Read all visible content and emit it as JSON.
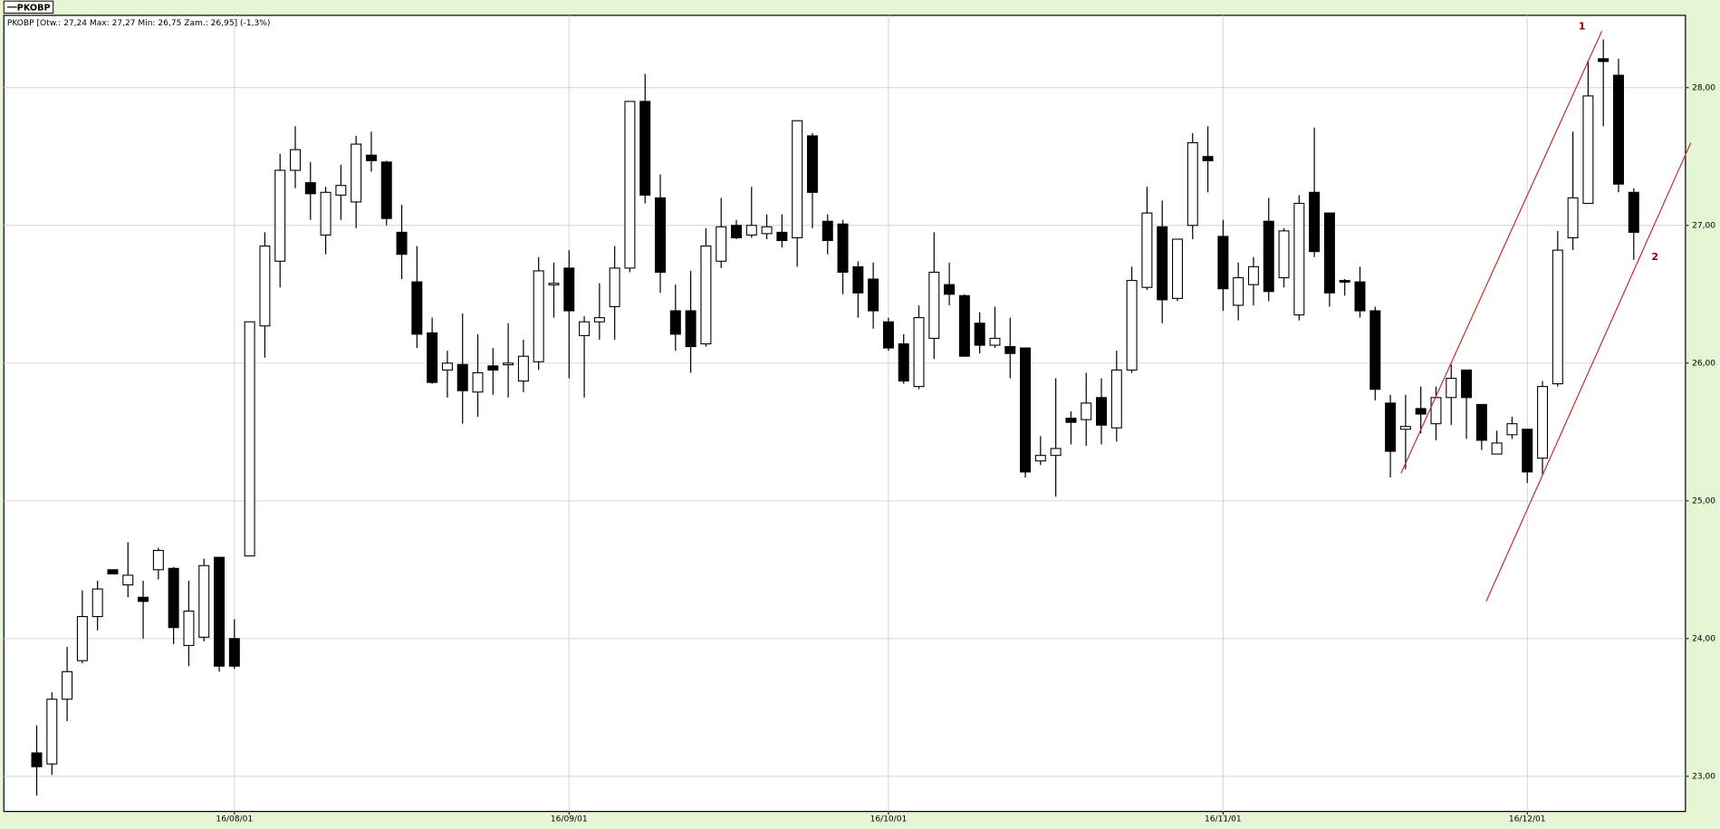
{
  "chart_data": {
    "type": "candlestick",
    "title": "PKOBP [Otw.: 27,24  Max: 27,27  Min: 26,75  Zam.: 26,95] (-1,3%)",
    "categories": [
      null,
      null,
      null,
      null,
      null,
      null,
      null,
      null,
      null,
      null,
      null,
      null,
      null,
      "16/08/01",
      null,
      null,
      null,
      null,
      null,
      null,
      null,
      null,
      null,
      null,
      null,
      null,
      null,
      null,
      null,
      null,
      null,
      null,
      null,
      null,
      null,
      "16/09/01",
      null,
      null,
      null,
      null,
      null,
      null,
      null,
      null,
      null,
      null,
      null,
      null,
      null,
      null,
      null,
      null,
      null,
      null,
      null,
      null,
      "16/10/01",
      null,
      null,
      null,
      null,
      null,
      null,
      null,
      null,
      null,
      null,
      null,
      null,
      null,
      null,
      null,
      null,
      null,
      null,
      null,
      null,
      null,
      "16/11/01",
      null,
      null,
      null,
      null,
      null,
      null,
      null,
      null,
      null,
      null,
      null,
      null,
      null,
      null,
      null,
      null,
      null,
      null,
      null,
      "16/12/01",
      null,
      null,
      null,
      null,
      null,
      null,
      null
    ],
    "series": [
      {
        "name": "PKOBP",
        "color": "#000000",
        "open": [
          23.17,
          23.09,
          23.56,
          23.84,
          24.16,
          24.5,
          24.39,
          24.3,
          24.5,
          24.51,
          23.95,
          24.01,
          24.59,
          24.0,
          24.6,
          26.27,
          26.74,
          27.4,
          27.31,
          26.93,
          27.22,
          27.17,
          27.51,
          27.46,
          26.95,
          26.59,
          26.22,
          25.95,
          25.99,
          25.79,
          25.98,
          25.99,
          25.87,
          26.01,
          26.57,
          26.69,
          26.2,
          26.3,
          26.41,
          26.69,
          27.9,
          27.2,
          26.38,
          26.38,
          26.14,
          26.74,
          27.0,
          26.93,
          26.94,
          26.95,
          26.91,
          27.65,
          27.03,
          27.01,
          26.7,
          26.61,
          26.3,
          26.14,
          25.83,
          26.18,
          26.57,
          26.49,
          26.29,
          26.13,
          26.12,
          26.11,
          25.29,
          25.33,
          25.6,
          25.59,
          25.75,
          25.53,
          25.95,
          26.55,
          26.99,
          26.47,
          27.0,
          27.5,
          26.92,
          26.42,
          26.57,
          27.03,
          26.62,
          26.35,
          27.24,
          27.09,
          26.6,
          26.59,
          26.38,
          25.71,
          25.52,
          25.67,
          25.56,
          25.75,
          25.95,
          25.7,
          25.34,
          25.48,
          25.52,
          25.31,
          25.85,
          26.91,
          27.16,
          28.21,
          28.09,
          27.24
        ],
        "high": [
          23.37,
          23.61,
          23.94,
          24.35,
          24.42,
          24.5,
          24.7,
          24.42,
          24.66,
          24.52,
          24.42,
          24.58,
          24.59,
          24.14,
          26.3,
          26.95,
          27.52,
          27.72,
          27.46,
          27.28,
          27.44,
          27.65,
          27.68,
          27.47,
          27.15,
          26.85,
          26.33,
          26.09,
          26.36,
          26.21,
          26.11,
          26.29,
          26.17,
          26.77,
          26.73,
          26.82,
          26.34,
          26.58,
          26.85,
          27.9,
          28.1,
          27.37,
          26.57,
          26.67,
          26.98,
          27.2,
          27.04,
          27.28,
          27.08,
          27.08,
          27.76,
          27.67,
          27.08,
          27.04,
          26.74,
          26.73,
          26.33,
          26.21,
          26.42,
          26.95,
          26.73,
          26.5,
          26.37,
          26.41,
          26.33,
          26.11,
          25.47,
          25.89,
          25.65,
          25.93,
          25.89,
          26.09,
          26.7,
          27.28,
          27.18,
          26.9,
          27.67,
          27.72,
          27.04,
          26.73,
          26.77,
          27.2,
          26.98,
          27.22,
          27.71,
          27.09,
          26.61,
          26.7,
          26.41,
          25.77,
          25.77,
          25.83,
          25.83,
          25.99,
          25.95,
          25.7,
          25.51,
          25.61,
          25.52,
          25.87,
          26.96,
          27.68,
          28.2,
          28.35,
          28.21,
          27.27
        ],
        "low": [
          22.86,
          23.01,
          23.4,
          23.82,
          24.06,
          24.47,
          24.3,
          24.0,
          24.43,
          23.96,
          23.8,
          23.98,
          23.76,
          23.78,
          24.6,
          26.04,
          26.55,
          27.27,
          27.04,
          26.79,
          27.04,
          26.98,
          27.39,
          27.0,
          26.61,
          26.11,
          25.85,
          25.75,
          25.56,
          25.61,
          25.77,
          25.75,
          25.79,
          25.95,
          26.33,
          25.89,
          25.75,
          26.17,
          26.17,
          26.66,
          27.16,
          26.51,
          26.09,
          25.93,
          26.12,
          26.69,
          26.9,
          26.91,
          26.9,
          26.84,
          26.7,
          26.98,
          26.79,
          26.5,
          26.33,
          26.25,
          26.09,
          25.85,
          25.81,
          26.03,
          26.42,
          26.05,
          26.07,
          26.11,
          25.89,
          25.17,
          25.26,
          25.03,
          25.41,
          25.4,
          25.41,
          25.43,
          25.93,
          26.53,
          26.29,
          26.45,
          26.9,
          27.24,
          26.38,
          26.31,
          26.42,
          26.45,
          26.55,
          26.31,
          26.77,
          26.41,
          26.49,
          26.33,
          25.73,
          25.17,
          25.23,
          25.49,
          25.44,
          25.55,
          25.45,
          25.37,
          25.34,
          25.45,
          25.13,
          25.19,
          25.83,
          26.82,
          27.16,
          27.72,
          27.24,
          26.75
        ],
        "close": [
          23.07,
          23.56,
          23.76,
          24.16,
          24.36,
          24.47,
          24.46,
          24.27,
          24.64,
          24.08,
          24.2,
          24.53,
          23.8,
          23.8,
          26.3,
          26.85,
          27.4,
          27.55,
          27.23,
          27.24,
          27.29,
          27.59,
          27.47,
          27.05,
          26.79,
          26.21,
          25.86,
          26.0,
          25.8,
          25.93,
          25.95,
          26.0,
          26.05,
          26.67,
          26.58,
          26.38,
          26.3,
          26.33,
          26.69,
          27.9,
          27.22,
          26.66,
          26.21,
          26.12,
          26.85,
          26.99,
          26.91,
          27.0,
          26.99,
          26.89,
          27.76,
          27.24,
          26.89,
          26.66,
          26.51,
          26.38,
          26.11,
          25.87,
          26.33,
          26.66,
          26.5,
          26.05,
          26.13,
          26.18,
          26.07,
          25.21,
          25.33,
          25.38,
          25.57,
          25.71,
          25.55,
          25.95,
          26.6,
          27.09,
          26.46,
          26.9,
          27.6,
          27.47,
          26.54,
          26.62,
          26.7,
          26.52,
          26.96,
          27.16,
          26.81,
          26.51,
          26.59,
          26.38,
          25.81,
          25.36,
          25.54,
          25.63,
          25.75,
          25.89,
          25.75,
          25.44,
          25.42,
          25.56,
          25.21,
          25.83,
          26.82,
          27.2,
          27.94,
          28.19,
          27.3,
          26.95
        ]
      }
    ],
    "xlim": [
      -2.16,
      108.4
    ],
    "ylim": [
      22.745,
      28.525
    ],
    "yticks": [
      {
        "value": 23,
        "label": "23,00"
      },
      {
        "value": 24,
        "label": "24,00"
      },
      {
        "value": 25,
        "label": "25,00"
      },
      {
        "value": 26,
        "label": "26,00"
      },
      {
        "value": 27,
        "label": "27,00"
      },
      {
        "value": 28,
        "label": "28,00"
      }
    ],
    "grid": true,
    "annotations": [
      {
        "text": "1",
        "color": "#c03030",
        "x": [
          89.7,
          102.9
        ],
        "y": [
          25.2,
          28.41
        ]
      },
      {
        "text": "2",
        "color": "#c03030",
        "x": [
          95.3,
          108.75
        ],
        "y": [
          24.27,
          27.6
        ]
      }
    ]
  }
}
